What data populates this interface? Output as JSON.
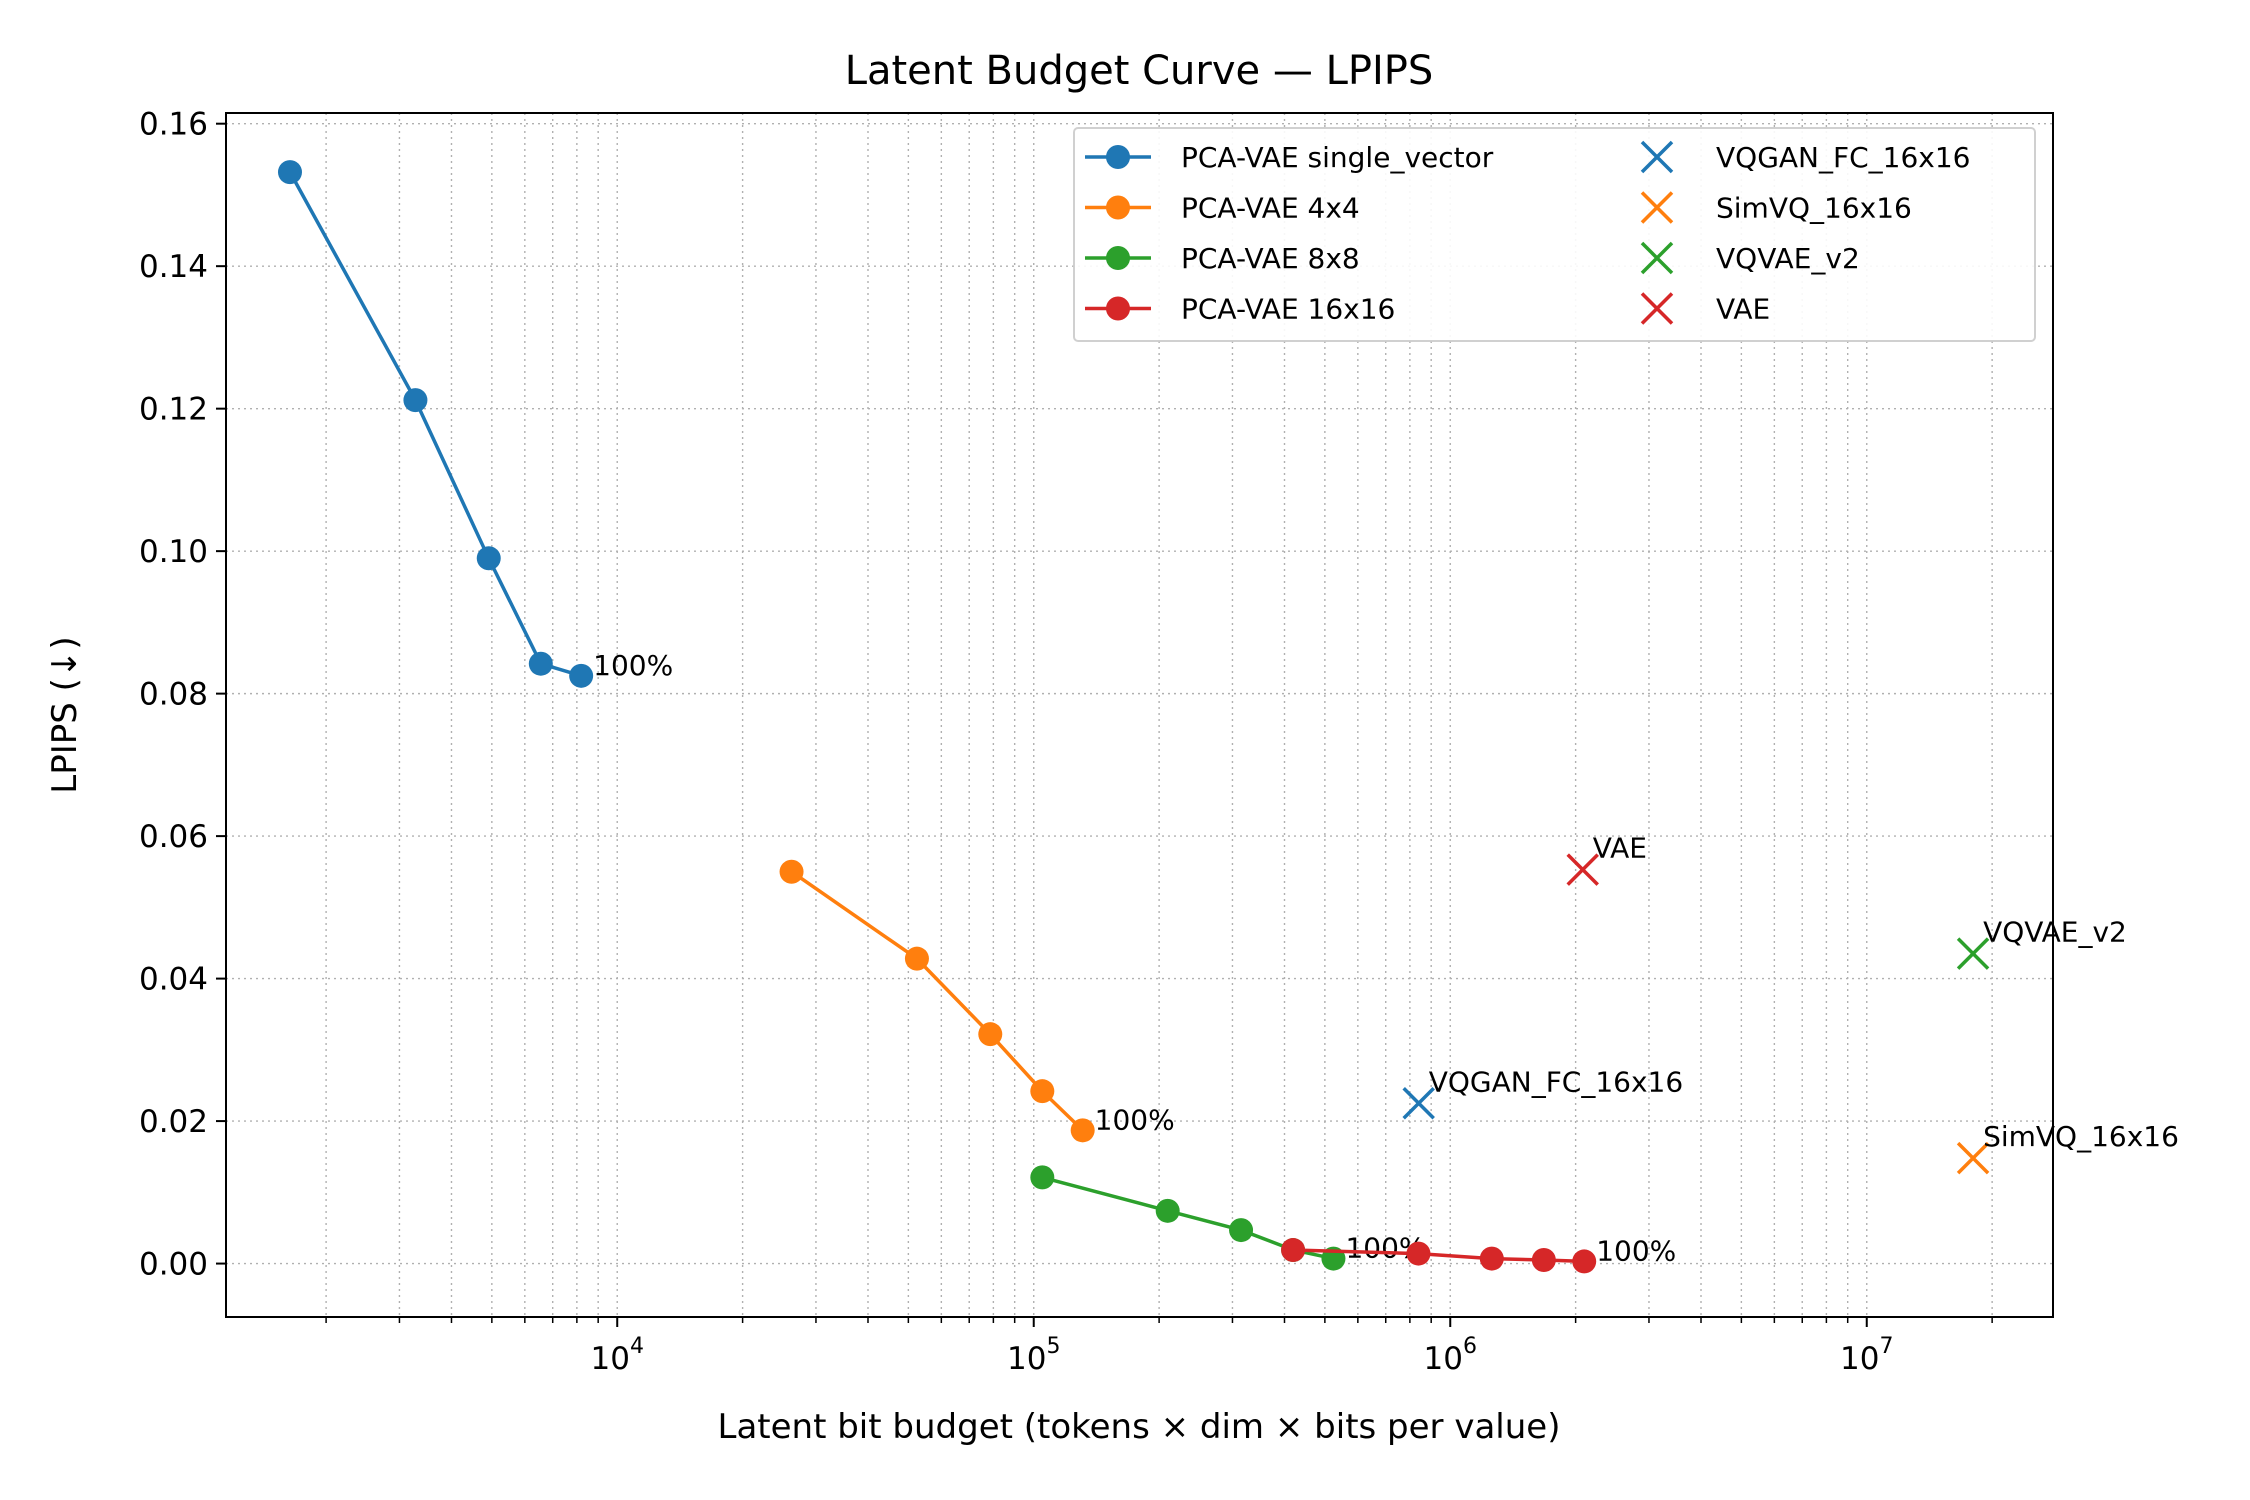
{
  "chart_data": {
    "type": "line",
    "title": "Latent Budget Curve — LPIPS",
    "xlabel": "Latent bit budget (tokens × dim × bits per value)",
    "ylabel": "LPIPS (↓)",
    "xscale": "log",
    "xlim": [
      1150,
      28000000
    ],
    "ylim": [
      -0.0075,
      0.1615
    ],
    "yticks": [
      0.0,
      0.02,
      0.04,
      0.06,
      0.08,
      0.1,
      0.12,
      0.14,
      0.16
    ],
    "ytick_labels": [
      "0.00",
      "0.02",
      "0.04",
      "0.06",
      "0.08",
      "0.10",
      "0.12",
      "0.14",
      "0.16"
    ],
    "xticks_major": [
      10000,
      100000,
      1000000,
      10000000
    ],
    "xtick_labels": [
      {
        "base": "10",
        "exp": "4"
      },
      {
        "base": "10",
        "exp": "5"
      },
      {
        "base": "10",
        "exp": "6"
      },
      {
        "base": "10",
        "exp": "7"
      }
    ],
    "grid": true,
    "legend_position": "upper-right",
    "series": [
      {
        "name": "PCA-VAE single_vector",
        "color": "#1f77b4",
        "x": [
          1638,
          3277,
          4915,
          6554,
          8192
        ],
        "y": [
          0.1532,
          0.1212,
          0.099,
          0.0842,
          0.0825
        ],
        "end_label": "100%"
      },
      {
        "name": "PCA-VAE 4x4",
        "color": "#ff7f0e",
        "x": [
          26214,
          52429,
          78643,
          104858,
          131072
        ],
        "y": [
          0.055,
          0.0428,
          0.0322,
          0.0242,
          0.0187
        ],
        "end_label": "100%"
      },
      {
        "name": "PCA-VAE 8x8",
        "color": "#2ca02c",
        "x": [
          104858,
          209715,
          314573,
          419430,
          524288
        ],
        "y": [
          0.0121,
          0.0074,
          0.0047,
          0.0019,
          0.0007
        ],
        "end_label": "100%"
      },
      {
        "name": "PCA-VAE 16x16",
        "color": "#d62728",
        "x": [
          419430,
          838861,
          1258291,
          1677722,
          2097152
        ],
        "y": [
          0.0019,
          0.0014,
          0.0007,
          0.0005,
          0.0003
        ],
        "end_label": "100%"
      }
    ],
    "baselines": [
      {
        "name": "VQGAN_FC_16x16",
        "color": "#1f77b4",
        "x": 840000,
        "y": 0.0225
      },
      {
        "name": "SimVQ_16x16",
        "color": "#ff7f0e",
        "x": 18000000,
        "y": 0.0148
      },
      {
        "name": "VQVAE_v2",
        "color": "#2ca02c",
        "x": 18000000,
        "y": 0.0435
      },
      {
        "name": "VAE",
        "color": "#d62728",
        "x": 2080000,
        "y": 0.0553
      }
    ]
  }
}
